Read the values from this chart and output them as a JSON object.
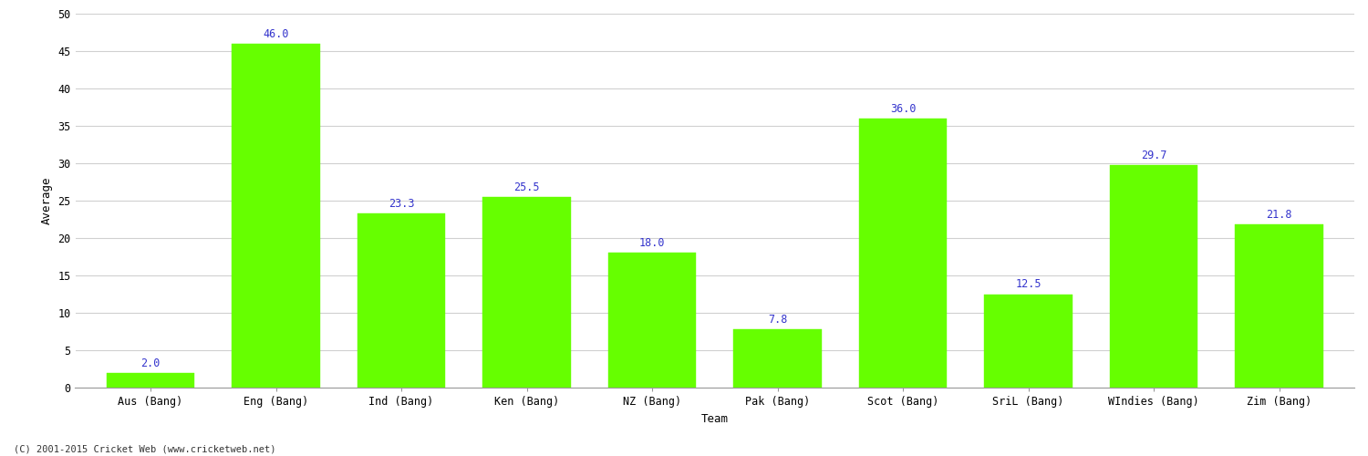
{
  "categories": [
    "Aus (Bang)",
    "Eng (Bang)",
    "Ind (Bang)",
    "Ken (Bang)",
    "NZ (Bang)",
    "Pak (Bang)",
    "Scot (Bang)",
    "SriL (Bang)",
    "WIndies (Bang)",
    "Zim (Bang)"
  ],
  "values": [
    2.0,
    46.0,
    23.3,
    25.5,
    18.0,
    7.8,
    36.0,
    12.5,
    29.7,
    21.8
  ],
  "bar_color": "#66ff00",
  "bar_edge_color": "#66ff00",
  "value_label_color": "#3333cc",
  "value_label_fontsize": 8.5,
  "xlabel": "Team",
  "ylabel": "Average",
  "ylim": [
    0,
    50
  ],
  "yticks": [
    0,
    5,
    10,
    15,
    20,
    25,
    30,
    35,
    40,
    45,
    50
  ],
  "grid_color": "#d0d0d0",
  "background_color": "#ffffff",
  "figure_width": 15.0,
  "figure_height": 5.0,
  "footnote": "(C) 2001-2015 Cricket Web (www.cricketweb.net)",
  "footnote_fontsize": 7.5,
  "footnote_color": "#333333",
  "axis_label_fontsize": 9,
  "tick_label_fontsize": 8.5,
  "bar_width": 0.7
}
